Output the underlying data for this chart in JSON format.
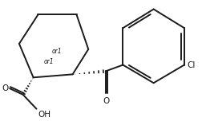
{
  "background_color": "#ffffff",
  "line_color": "#1a1a1a",
  "line_width": 1.4,
  "figsize": [
    2.62,
    1.52
  ],
  "dpi": 100,
  "or1_label": "or1",
  "Cl_label": "Cl",
  "O_label": "O",
  "OH_label": "OH"
}
